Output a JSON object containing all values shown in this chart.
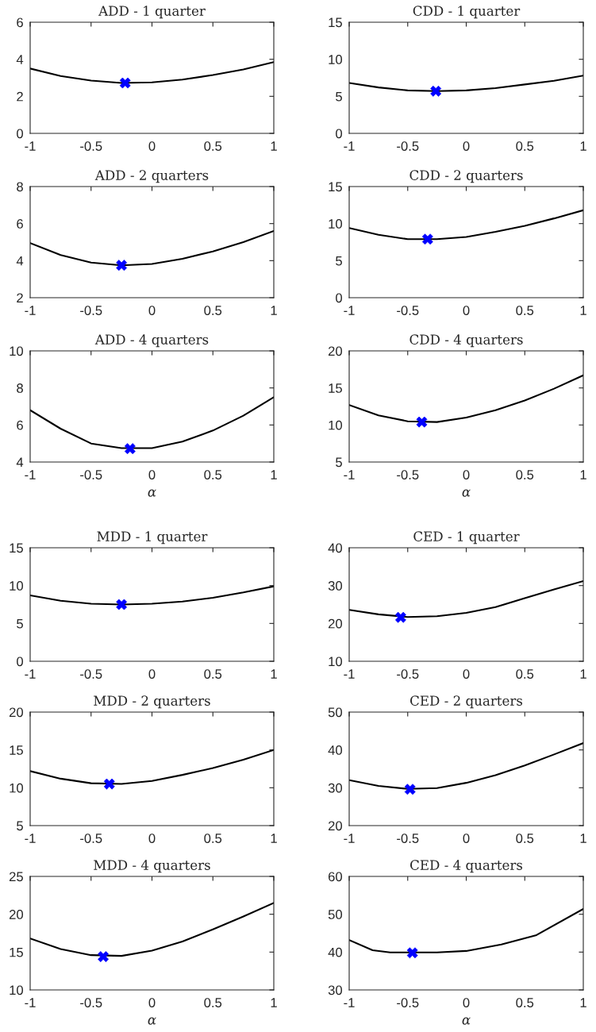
{
  "chart_data": [
    {
      "type": "line",
      "title": "ADD - 1 quarter",
      "xlim": [
        -1,
        1
      ],
      "xticks": [
        -1,
        -0.5,
        0,
        0.5,
        1
      ],
      "ylim": [
        0,
        6
      ],
      "yticks": [
        0,
        2,
        4,
        6
      ],
      "grid": false,
      "series": [
        {
          "type": "line",
          "color": "#000000",
          "x": [
            -1,
            -0.75,
            -0.5,
            -0.25,
            0,
            0.25,
            0.5,
            0.75,
            1
          ],
          "values": [
            3.5,
            3.1,
            2.85,
            2.72,
            2.75,
            2.9,
            3.15,
            3.45,
            3.85
          ]
        },
        {
          "type": "scatter",
          "color": "#0000ff",
          "marker": "cross",
          "x": [
            -0.22
          ],
          "values": [
            2.72
          ]
        }
      ]
    },
    {
      "type": "line",
      "title": "CDD - 1 quarter",
      "xlim": [
        -1,
        1
      ],
      "xticks": [
        -1,
        -0.5,
        0,
        0.5,
        1
      ],
      "ylim": [
        0,
        15
      ],
      "yticks": [
        0,
        5,
        10,
        15
      ],
      "grid": false,
      "series": [
        {
          "type": "line",
          "color": "#000000",
          "x": [
            -1,
            -0.75,
            -0.5,
            -0.25,
            0,
            0.25,
            0.5,
            0.75,
            1
          ],
          "values": [
            6.8,
            6.2,
            5.8,
            5.7,
            5.8,
            6.1,
            6.6,
            7.1,
            7.8
          ]
        },
        {
          "type": "scatter",
          "color": "#0000ff",
          "marker": "cross",
          "x": [
            -0.26
          ],
          "values": [
            5.7
          ]
        }
      ]
    },
    {
      "type": "line",
      "title": "ADD - 2 quarters",
      "xlim": [
        -1,
        1
      ],
      "xticks": [
        -1,
        -0.5,
        0,
        0.5,
        1
      ],
      "ylim": [
        2,
        8
      ],
      "yticks": [
        2,
        4,
        6,
        8
      ],
      "grid": false,
      "series": [
        {
          "type": "line",
          "color": "#000000",
          "x": [
            -1,
            -0.75,
            -0.5,
            -0.25,
            0,
            0.25,
            0.5,
            0.75,
            1
          ],
          "values": [
            4.95,
            4.3,
            3.9,
            3.75,
            3.82,
            4.1,
            4.5,
            5.0,
            5.6
          ]
        },
        {
          "type": "scatter",
          "color": "#0000ff",
          "marker": "cross",
          "x": [
            -0.25
          ],
          "values": [
            3.75
          ]
        }
      ]
    },
    {
      "type": "line",
      "title": "CDD - 2 quarters",
      "xlim": [
        -1,
        1
      ],
      "xticks": [
        -1,
        -0.5,
        0,
        0.5,
        1
      ],
      "ylim": [
        0,
        15
      ],
      "yticks": [
        0,
        5,
        10,
        15
      ],
      "grid": false,
      "series": [
        {
          "type": "line",
          "color": "#000000",
          "x": [
            -1,
            -0.75,
            -0.5,
            -0.25,
            0,
            0.25,
            0.5,
            0.75,
            1
          ],
          "values": [
            9.4,
            8.5,
            7.9,
            7.9,
            8.2,
            8.9,
            9.7,
            10.7,
            11.8
          ]
        },
        {
          "type": "scatter",
          "color": "#0000ff",
          "marker": "cross",
          "x": [
            -0.33
          ],
          "values": [
            7.9
          ]
        }
      ]
    },
    {
      "type": "line",
      "title": "ADD - 4 quarters",
      "xlabel": "α",
      "xlim": [
        -1,
        1
      ],
      "xticks": [
        -1,
        -0.5,
        0,
        0.5,
        1
      ],
      "ylim": [
        4,
        10
      ],
      "yticks": [
        4,
        6,
        8,
        10
      ],
      "grid": false,
      "series": [
        {
          "type": "line",
          "color": "#000000",
          "x": [
            -1,
            -0.75,
            -0.5,
            -0.25,
            0,
            0.25,
            0.5,
            0.75,
            1
          ],
          "values": [
            6.8,
            5.8,
            5.0,
            4.75,
            4.75,
            5.1,
            5.7,
            6.5,
            7.5
          ]
        },
        {
          "type": "scatter",
          "color": "#0000ff",
          "marker": "cross",
          "x": [
            -0.18
          ],
          "values": [
            4.72
          ]
        }
      ]
    },
    {
      "type": "line",
      "title": "CDD - 4 quarters",
      "xlabel": "α",
      "xlim": [
        -1,
        1
      ],
      "xticks": [
        -1,
        -0.5,
        0,
        0.5,
        1
      ],
      "ylim": [
        5,
        20
      ],
      "yticks": [
        5,
        10,
        15,
        20
      ],
      "grid": false,
      "series": [
        {
          "type": "line",
          "color": "#000000",
          "x": [
            -1,
            -0.75,
            -0.5,
            -0.25,
            0,
            0.25,
            0.5,
            0.75,
            1
          ],
          "values": [
            12.7,
            11.3,
            10.5,
            10.4,
            11.0,
            12.0,
            13.3,
            14.9,
            16.7
          ]
        },
        {
          "type": "scatter",
          "color": "#0000ff",
          "marker": "cross",
          "x": [
            -0.38
          ],
          "values": [
            10.4
          ]
        }
      ]
    },
    {
      "type": "line",
      "title": "MDD - 1 quarter",
      "xlim": [
        -1,
        1
      ],
      "xticks": [
        -1,
        -0.5,
        0,
        0.5,
        1
      ],
      "ylim": [
        0,
        15
      ],
      "yticks": [
        0,
        5,
        10,
        15
      ],
      "grid": false,
      "series": [
        {
          "type": "line",
          "color": "#000000",
          "x": [
            -1,
            -0.75,
            -0.5,
            -0.25,
            0,
            0.25,
            0.5,
            0.75,
            1
          ],
          "values": [
            8.7,
            8.0,
            7.6,
            7.5,
            7.6,
            7.9,
            8.4,
            9.1,
            9.9
          ]
        },
        {
          "type": "scatter",
          "color": "#0000ff",
          "marker": "cross",
          "x": [
            -0.25
          ],
          "values": [
            7.5
          ]
        }
      ]
    },
    {
      "type": "line",
      "title": "CED - 1 quarter",
      "xlim": [
        -1,
        1
      ],
      "xticks": [
        -1,
        -0.5,
        0,
        0.5,
        1
      ],
      "ylim": [
        10,
        40
      ],
      "yticks": [
        10,
        20,
        30,
        40
      ],
      "grid": false,
      "series": [
        {
          "type": "line",
          "color": "#000000",
          "x": [
            -1,
            -0.75,
            -0.5,
            -0.25,
            0,
            0.25,
            0.5,
            0.75,
            1
          ],
          "values": [
            23.6,
            22.4,
            21.7,
            21.9,
            22.8,
            24.3,
            26.7,
            29.0,
            31.2
          ]
        },
        {
          "type": "scatter",
          "color": "#0000ff",
          "marker": "cross",
          "x": [
            -0.56
          ],
          "values": [
            21.6
          ]
        }
      ]
    },
    {
      "type": "line",
      "title": "MDD - 2 quarters",
      "xlim": [
        -1,
        1
      ],
      "xticks": [
        -1,
        -0.5,
        0,
        0.5,
        1
      ],
      "ylim": [
        5,
        20
      ],
      "yticks": [
        5,
        10,
        15,
        20
      ],
      "grid": false,
      "series": [
        {
          "type": "line",
          "color": "#000000",
          "x": [
            -1,
            -0.75,
            -0.5,
            -0.25,
            0,
            0.25,
            0.5,
            0.75,
            1
          ],
          "values": [
            12.2,
            11.2,
            10.6,
            10.5,
            10.9,
            11.7,
            12.6,
            13.7,
            15.0
          ]
        },
        {
          "type": "scatter",
          "color": "#0000ff",
          "marker": "cross",
          "x": [
            -0.35
          ],
          "values": [
            10.5
          ]
        }
      ]
    },
    {
      "type": "line",
      "title": "CED - 2 quarters",
      "xlim": [
        -1,
        1
      ],
      "xticks": [
        -1,
        -0.5,
        0,
        0.5,
        1
      ],
      "ylim": [
        20,
        50
      ],
      "yticks": [
        20,
        30,
        40,
        50
      ],
      "grid": false,
      "series": [
        {
          "type": "line",
          "color": "#000000",
          "x": [
            -1,
            -0.75,
            -0.5,
            -0.25,
            0,
            0.25,
            0.5,
            0.75,
            1
          ],
          "values": [
            32.0,
            30.5,
            29.7,
            29.9,
            31.3,
            33.3,
            35.9,
            38.8,
            41.8
          ]
        },
        {
          "type": "scatter",
          "color": "#0000ff",
          "marker": "cross",
          "x": [
            -0.48
          ],
          "values": [
            29.6
          ]
        }
      ]
    },
    {
      "type": "line",
      "title": "MDD - 4 quarters",
      "xlabel": "α",
      "xlim": [
        -1,
        1
      ],
      "xticks": [
        -1,
        -0.5,
        0,
        0.5,
        1
      ],
      "ylim": [
        10,
        25
      ],
      "yticks": [
        10,
        15,
        20,
        25
      ],
      "grid": false,
      "series": [
        {
          "type": "line",
          "color": "#000000",
          "x": [
            -1,
            -0.75,
            -0.5,
            -0.25,
            0,
            0.25,
            0.5,
            0.75,
            1
          ],
          "values": [
            16.8,
            15.4,
            14.6,
            14.5,
            15.2,
            16.4,
            18.0,
            19.7,
            21.5
          ]
        },
        {
          "type": "scatter",
          "color": "#0000ff",
          "marker": "cross",
          "x": [
            -0.4
          ],
          "values": [
            14.4
          ]
        }
      ]
    },
    {
      "type": "line",
      "title": "CED - 4 quarters",
      "xlabel": "α",
      "xlim": [
        -1,
        1
      ],
      "xticks": [
        -1,
        -0.5,
        0,
        0.5,
        1
      ],
      "ylim": [
        30,
        60
      ],
      "yticks": [
        30,
        40,
        50,
        60
      ],
      "grid": false,
      "series": [
        {
          "type": "line",
          "color": "#000000",
          "x": [
            -1,
            -0.8,
            -0.65,
            -0.25,
            0,
            0.3,
            0.6,
            1
          ],
          "values": [
            43.2,
            40.5,
            39.9,
            39.9,
            40.3,
            42.0,
            44.5,
            51.4
          ]
        },
        {
          "type": "scatter",
          "color": "#0000ff",
          "marker": "cross",
          "x": [
            -0.46
          ],
          "values": [
            39.8
          ]
        }
      ]
    }
  ]
}
